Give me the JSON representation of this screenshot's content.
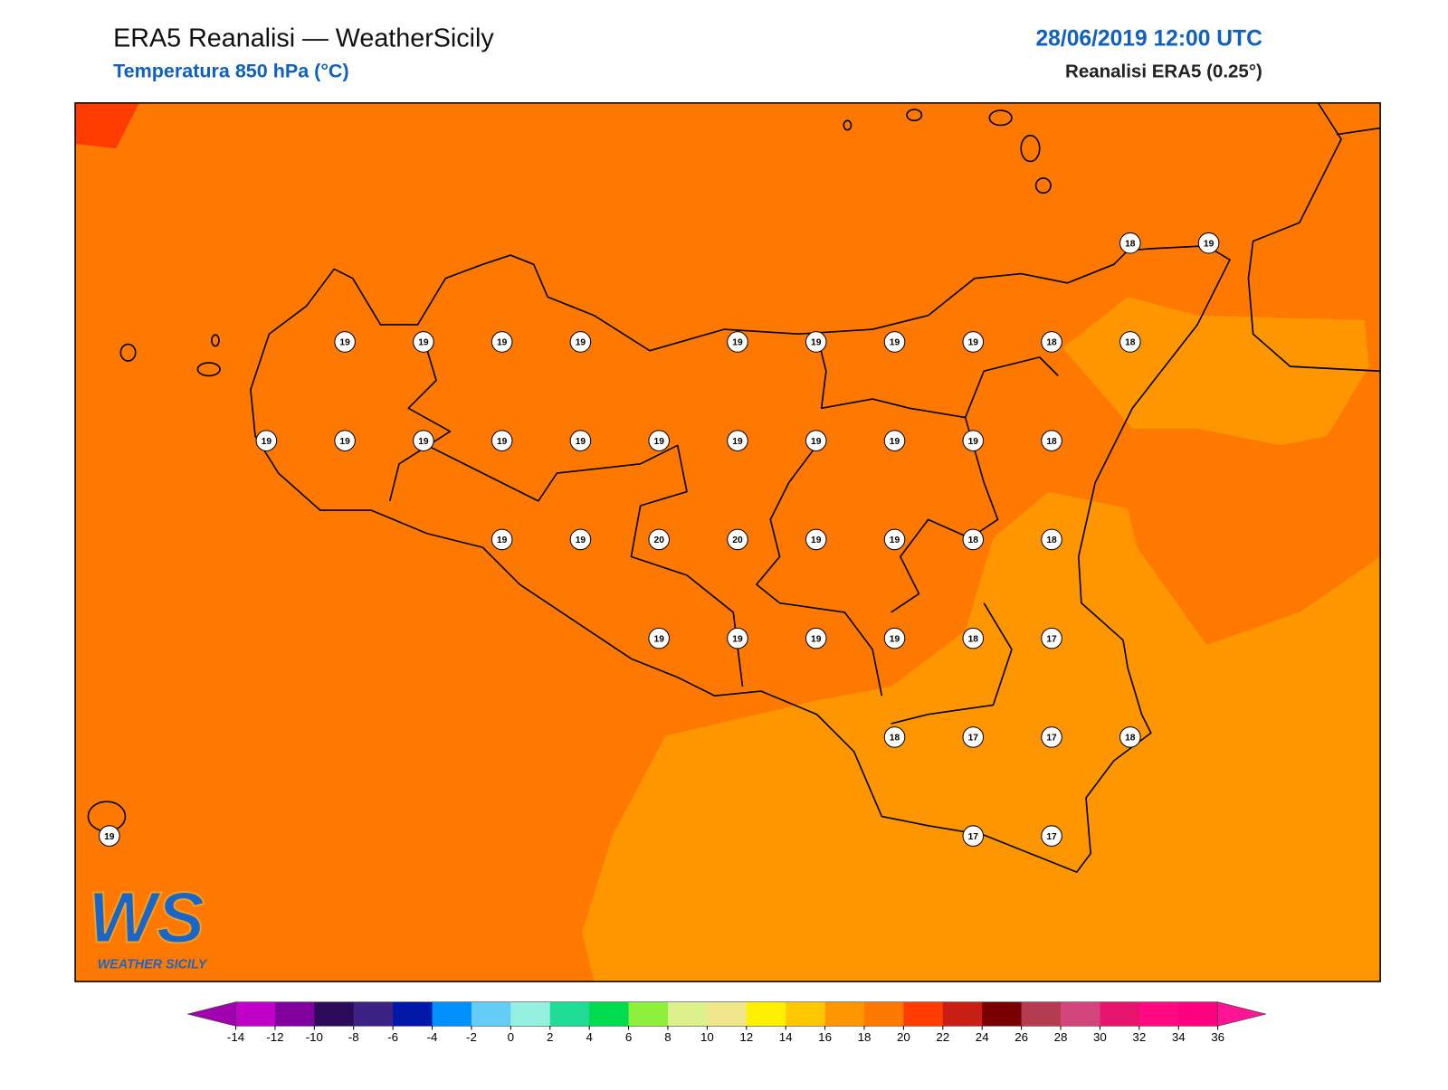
{
  "header": {
    "title": "ERA5 Reanalisi — WeatherSicily",
    "subtitle": "Temperatura 850 hPa (°C)",
    "datetime": "28/06/2019 12:00 UTC",
    "source": "Reanalisi ERA5 (0.25°)"
  },
  "logo": {
    "mark": "WS",
    "name": "WEATHER SICILY"
  },
  "stations": [
    18,
    19,
    19,
    19,
    19,
    19,
    19,
    19,
    19,
    19,
    18,
    18,
    19,
    19,
    19,
    19,
    19,
    19,
    19,
    19,
    19,
    19,
    18,
    19,
    19,
    20,
    20,
    19,
    19,
    18,
    18,
    19,
    19,
    19,
    19,
    18,
    17,
    18,
    17,
    17,
    18,
    19,
    17,
    17
  ],
  "colorbar": {
    "ticks": [
      -14,
      -12,
      -10,
      -8,
      -6,
      -4,
      -2,
      0,
      2,
      4,
      6,
      8,
      10,
      12,
      14,
      16,
      18,
      20,
      22,
      24,
      26,
      28,
      30,
      32,
      34,
      36
    ],
    "colors": [
      "#c000c8",
      "#80009c",
      "#2e0a5a",
      "#3c2282",
      "#0018a8",
      "#0090ff",
      "#64ccf6",
      "#96f0e0",
      "#1edc96",
      "#00dc50",
      "#8cf03c",
      "#dcf08c",
      "#f0e68c",
      "#fff000",
      "#ffc800",
      "#ff9600",
      "#ff7800",
      "#ff3c00",
      "#c81e14",
      "#780000",
      "#b43c50",
      "#d2467d",
      "#e6146e",
      "#ff0a82",
      "#ff0080"
    ],
    "under": "#a000b0",
    "over": "#ff1493"
  }
}
